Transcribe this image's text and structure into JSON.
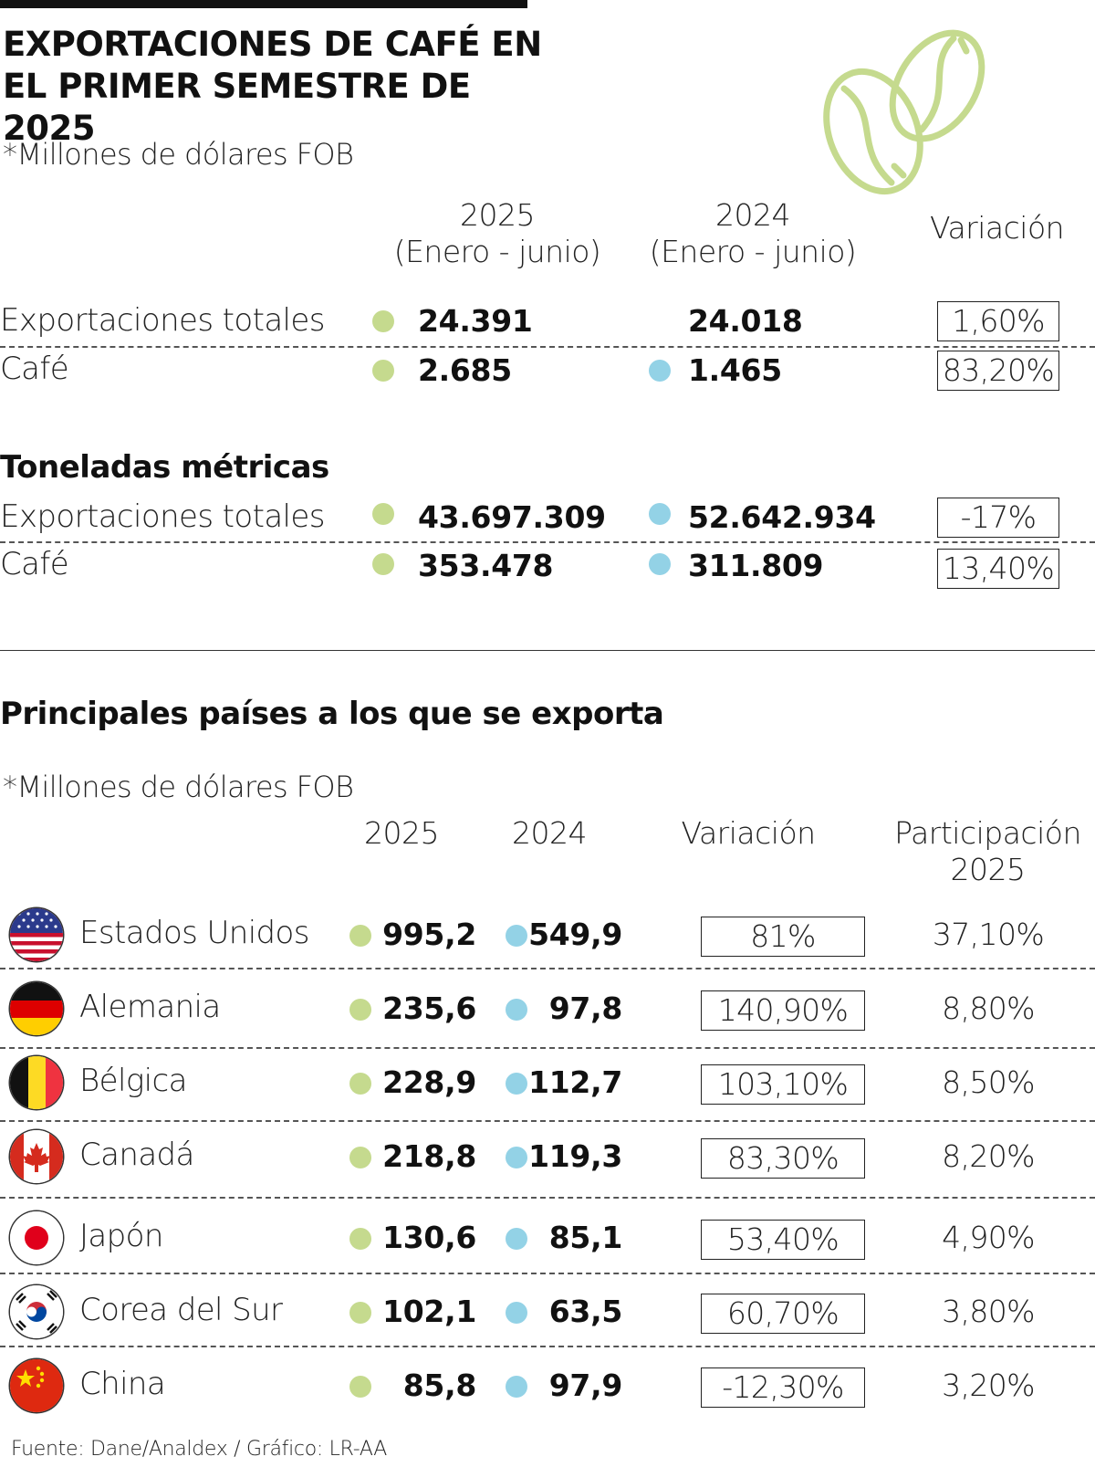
{
  "title": "EXPORTACIONES DE CAFÉ EN EL PRIMER SEMESTRE DE 2025",
  "unit_note": "*Millones de dólares FOB",
  "colors": {
    "green_2025": "#c5da8e",
    "blue_2024": "#93d2e6",
    "bean": "#c5da8e"
  },
  "summary": {
    "col_2025_year": "2025",
    "col_2025_period": "(Enero - junio)",
    "col_2024_year": "2024",
    "col_2024_period": "(Enero - junio)",
    "col_variation": "Variación",
    "usd": [
      {
        "label": "Exportaciones totales",
        "v2025": "24.391",
        "v2024": "24.018",
        "variation": "1,60%"
      },
      {
        "label": "Café",
        "v2025": "2.685",
        "v2024": "1.465",
        "variation": "83,20%"
      }
    ],
    "tons_title": "Toneladas métricas",
    "tons": [
      {
        "label": "Exportaciones totales",
        "v2025": "43.697.309",
        "v2024": "52.642.934",
        "variation": "-17%"
      },
      {
        "label": "Café",
        "v2025": "353.478",
        "v2024": "311.809",
        "variation": "13,40%"
      }
    ]
  },
  "countries": {
    "title": "Principales países a los que se exporta",
    "unit_note": "*Millones de dólares FOB",
    "col_2025": "2025",
    "col_2024": "2024",
    "col_variation": "Variación",
    "col_share_1": "Participación",
    "col_share_2": "2025",
    "rows": [
      {
        "name": "Estados Unidos",
        "flag": "usa-flag-icon",
        "v2025": "995,2",
        "v2024": "549,9",
        "variation": "81%",
        "share": "37,10%"
      },
      {
        "name": "Alemania",
        "flag": "germany-flag-icon",
        "v2025": "235,6",
        "v2024": "97,8",
        "variation": "140,90%",
        "share": "8,80%"
      },
      {
        "name": "Bélgica",
        "flag": "belgium-flag-icon",
        "v2025": "228,9",
        "v2024": "112,7",
        "variation": "103,10%",
        "share": "8,50%"
      },
      {
        "name": "Canadá",
        "flag": "canada-flag-icon",
        "v2025": "218,8",
        "v2024": "119,3",
        "variation": "83,30%",
        "share": "8,20%"
      },
      {
        "name": "Japón",
        "flag": "japan-flag-icon",
        "v2025": "130,6",
        "v2024": "85,1",
        "variation": "53,40%",
        "share": "4,90%"
      },
      {
        "name": "Corea del Sur",
        "flag": "south-korea-flag-icon",
        "v2025": "102,1",
        "v2024": "63,5",
        "variation": "60,70%",
        "share": "3,80%"
      },
      {
        "name": "China",
        "flag": "china-flag-icon",
        "v2025": "85,8",
        "v2024": "97,9",
        "variation": "-12,30%",
        "share": "3,20%"
      }
    ]
  },
  "source": "Fuente: Dane/Analdex / Gráfico: LR-AA",
  "chart_data": {
    "type": "table",
    "title": "EXPORTACIONES DE CAFÉ EN EL PRIMER SEMESTRE DE 2025",
    "units": "*Millones de dólares FOB",
    "tables": [
      {
        "columns": [
          "2025 (Enero - junio)",
          "2024 (Enero - junio)",
          "Variación"
        ],
        "rows": [
          {
            "label": "Exportaciones totales",
            "values": [
              24391,
              24018,
              1.6
            ]
          },
          {
            "label": "Café",
            "values": [
              2685,
              1465,
              83.2
            ]
          }
        ]
      },
      {
        "title": "Toneladas métricas",
        "columns": [
          "2025 (Enero - junio)",
          "2024 (Enero - junio)",
          "Variación"
        ],
        "rows": [
          {
            "label": "Exportaciones totales",
            "values": [
              43697309,
              52642934,
              -17
            ]
          },
          {
            "label": "Café",
            "values": [
              353478,
              311809,
              13.4
            ]
          }
        ]
      },
      {
        "title": "Principales países a los que se exporta",
        "columns": [
          "2025",
          "2024",
          "Variación",
          "Participación 2025"
        ],
        "rows": [
          {
            "label": "Estados Unidos",
            "values": [
              995.2,
              549.9,
              81,
              37.1
            ]
          },
          {
            "label": "Alemania",
            "values": [
              235.6,
              97.8,
              140.9,
              8.8
            ]
          },
          {
            "label": "Bélgica",
            "values": [
              228.9,
              112.7,
              103.1,
              8.5
            ]
          },
          {
            "label": "Canadá",
            "values": [
              218.8,
              119.3,
              83.3,
              8.2
            ]
          },
          {
            "label": "Japón",
            "values": [
              130.6,
              85.1,
              53.4,
              4.9
            ]
          },
          {
            "label": "Corea del Sur",
            "values": [
              102.1,
              63.5,
              60.7,
              3.8
            ]
          },
          {
            "label": "China",
            "values": [
              85.8,
              97.9,
              -12.3,
              3.2
            ]
          }
        ]
      }
    ]
  }
}
